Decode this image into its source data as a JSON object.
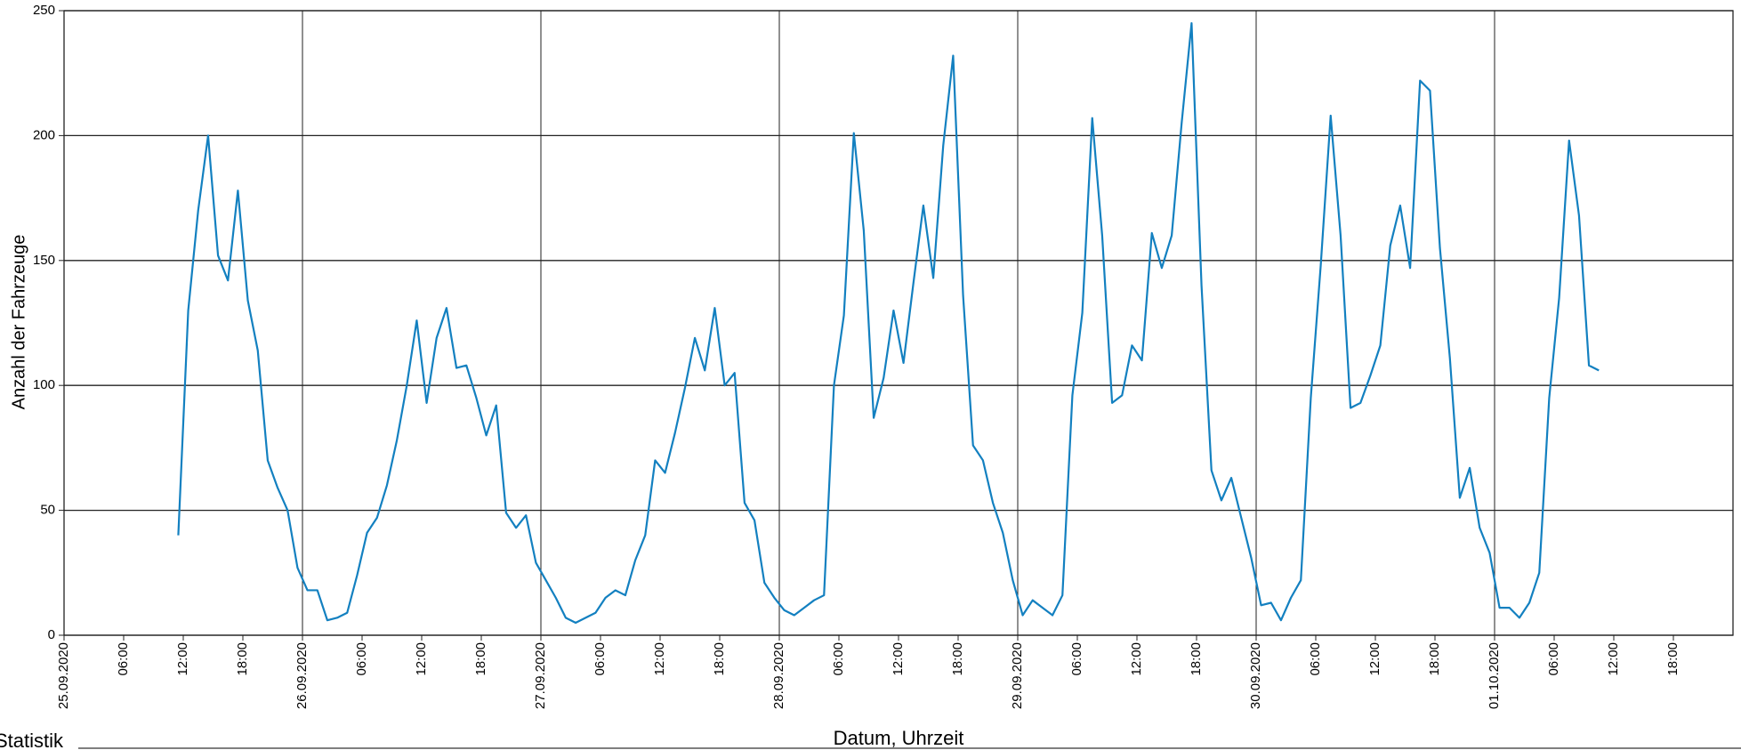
{
  "chart_data": {
    "type": "line",
    "x_label": "Datum, Uhrzeit",
    "y_label": "Anzahl der Fahrzeuge",
    "footer": "Statistik",
    "grid": true,
    "xlim": [
      0,
      168
    ],
    "ylim": [
      0,
      250
    ],
    "yticks": [
      0,
      50,
      100,
      150,
      200,
      250
    ],
    "xticks": [
      {
        "value": 0,
        "label": "25.09.2020"
      },
      {
        "value": 6,
        "label": "06:00"
      },
      {
        "value": 12,
        "label": "12:00"
      },
      {
        "value": 18,
        "label": "18:00"
      },
      {
        "value": 24,
        "label": "26.09.2020"
      },
      {
        "value": 30,
        "label": "06:00"
      },
      {
        "value": 36,
        "label": "12:00"
      },
      {
        "value": 42,
        "label": "18:00"
      },
      {
        "value": 48,
        "label": "27.09.2020"
      },
      {
        "value": 54,
        "label": "06:00"
      },
      {
        "value": 60,
        "label": "12:00"
      },
      {
        "value": 66,
        "label": "18:00"
      },
      {
        "value": 72,
        "label": "28.09.2020"
      },
      {
        "value": 78,
        "label": "06:00"
      },
      {
        "value": 84,
        "label": "12:00"
      },
      {
        "value": 90,
        "label": "18:00"
      },
      {
        "value": 96,
        "label": "29.09.2020"
      },
      {
        "value": 102,
        "label": "06:00"
      },
      {
        "value": 108,
        "label": "12:00"
      },
      {
        "value": 114,
        "label": "18:00"
      },
      {
        "value": 120,
        "label": "30.09.2020"
      },
      {
        "value": 126,
        "label": "06:00"
      },
      {
        "value": 132,
        "label": "12:00"
      },
      {
        "value": 138,
        "label": "18:00"
      },
      {
        "value": 144,
        "label": "01.10.2020"
      },
      {
        "value": 150,
        "label": "06:00"
      },
      {
        "value": 156,
        "label": "12:00"
      },
      {
        "value": 162,
        "label": "18:00"
      }
    ],
    "color": "#1380c0",
    "x": [
      11.5,
      12.5,
      13.5,
      14.5,
      15.5,
      16.5,
      17.5,
      18.5,
      19.5,
      20.5,
      21.5,
      22.5,
      23.5,
      24.5,
      25.5,
      26.5,
      27.5,
      28.5,
      29.5,
      30.5,
      31.5,
      32.5,
      33.5,
      34.5,
      35.5,
      36.5,
      37.5,
      38.5,
      39.5,
      40.5,
      41.5,
      42.5,
      43.5,
      44.5,
      45.5,
      46.5,
      47.5,
      48.5,
      49.5,
      50.5,
      51.5,
      52.5,
      53.5,
      54.5,
      55.5,
      56.5,
      57.5,
      58.5,
      59.5,
      60.5,
      61.5,
      62.5,
      63.5,
      64.5,
      65.5,
      66.5,
      67.5,
      68.5,
      69.5,
      70.5,
      71.5,
      72.5,
      73.5,
      74.5,
      75.5,
      76.5,
      77.5,
      78.5,
      79.5,
      80.5,
      81.5,
      82.5,
      83.5,
      84.5,
      85.5,
      86.5,
      87.5,
      88.5,
      89.5,
      90.5,
      91.5,
      92.5,
      93.5,
      94.5,
      95.5,
      96.5,
      97.5,
      98.5,
      99.5,
      100.5,
      101.5,
      102.5,
      103.5,
      104.5,
      105.5,
      106.5,
      107.5,
      108.5,
      109.5,
      110.5,
      111.5,
      112.5,
      113.5,
      114.5,
      115.5,
      116.5,
      117.5,
      118.5,
      119.5,
      120.5,
      121.5,
      122.5,
      123.5,
      124.5,
      125.5,
      126.5,
      127.5,
      128.5,
      129.5,
      130.5,
      131.5,
      132.5,
      133.5,
      134.5,
      135.5,
      136.5,
      137.5,
      138.5,
      139.5,
      140.5,
      141.5,
      142.5,
      143.5,
      144.5,
      145.5,
      146.5,
      147.5,
      148.5,
      149.5,
      150.5,
      151.5,
      152.5,
      153.5,
      154.5
    ],
    "values": [
      40,
      130,
      170,
      200,
      152,
      142,
      178,
      134,
      114,
      70,
      59,
      50,
      27,
      18,
      18,
      6,
      7,
      9,
      24,
      41,
      47,
      60,
      78,
      100,
      126,
      93,
      119,
      131,
      107,
      108,
      95,
      80,
      92,
      49,
      43,
      48,
      29,
      22,
      15,
      7,
      5,
      7,
      9,
      15,
      18,
      16,
      30,
      40,
      70,
      65,
      81,
      99,
      119,
      106,
      131,
      100,
      105,
      53,
      46,
      21,
      15,
      10,
      8,
      11,
      14,
      16,
      100,
      128,
      201,
      162,
      87,
      103,
      130,
      109,
      141,
      172,
      143,
      196,
      232,
      136,
      76,
      70,
      53,
      41,
      22,
      8,
      14,
      11,
      8,
      16,
      96,
      129,
      207,
      160,
      93,
      96,
      116,
      110,
      161,
      147,
      160,
      205,
      245,
      140,
      66,
      54,
      63,
      47,
      31,
      12,
      13,
      6,
      15,
      22,
      95,
      148,
      208,
      160,
      91,
      93,
      104,
      116,
      156,
      172,
      147,
      222,
      218,
      155,
      111,
      55,
      67,
      43,
      33,
      11,
      11,
      7,
      13,
      25,
      95,
      135,
      198,
      168,
      108,
      106
    ]
  }
}
